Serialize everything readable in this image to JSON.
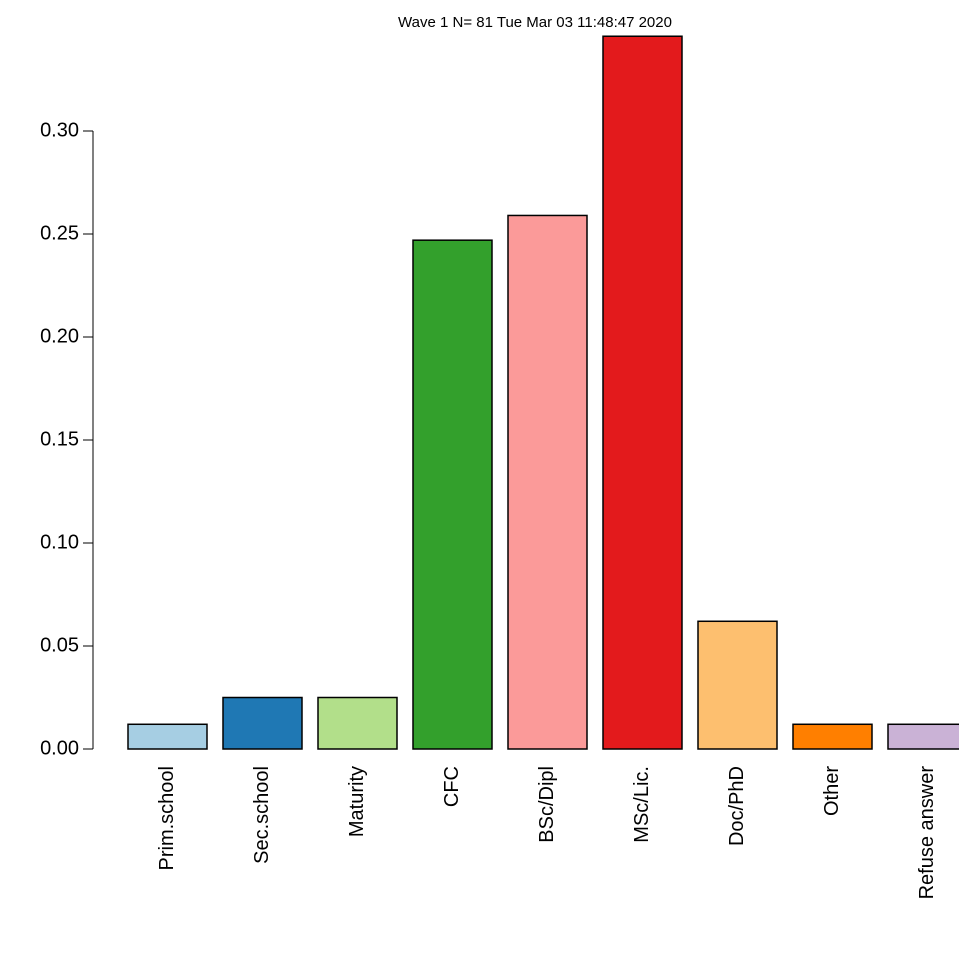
{
  "chart_data": {
    "type": "bar",
    "title": "Wave 1 N= 81 Tue Mar 03 11:48:47 2020",
    "categories": [
      "Prim.school",
      "Sec.school",
      "Maturity",
      "CFC",
      "BSc/Dipl",
      "MSc/Lic.",
      "Doc/PhD",
      "Other",
      "Refuse answer"
    ],
    "values": [
      0.012,
      0.025,
      0.025,
      0.247,
      0.259,
      0.346,
      0.062,
      0.012,
      0.012
    ],
    "colors": [
      "#a6cee3",
      "#1f78b4",
      "#b2df8a",
      "#33a02c",
      "#fb9a99",
      "#e31a1c",
      "#fdbf6f",
      "#ff7f00",
      "#cab2d6"
    ],
    "ylim": [
      0,
      0.35
    ],
    "yticks": [
      {
        "value": 0,
        "label": "0.00"
      },
      {
        "value": 0.05,
        "label": "0.05"
      },
      {
        "value": 0.1,
        "label": "0.10"
      },
      {
        "value": 0.15,
        "label": "0.15"
      },
      {
        "value": 0.2,
        "label": "0.20"
      },
      {
        "value": 0.25,
        "label": "0.25"
      },
      {
        "value": 0.3,
        "label": "0.30"
      }
    ]
  }
}
